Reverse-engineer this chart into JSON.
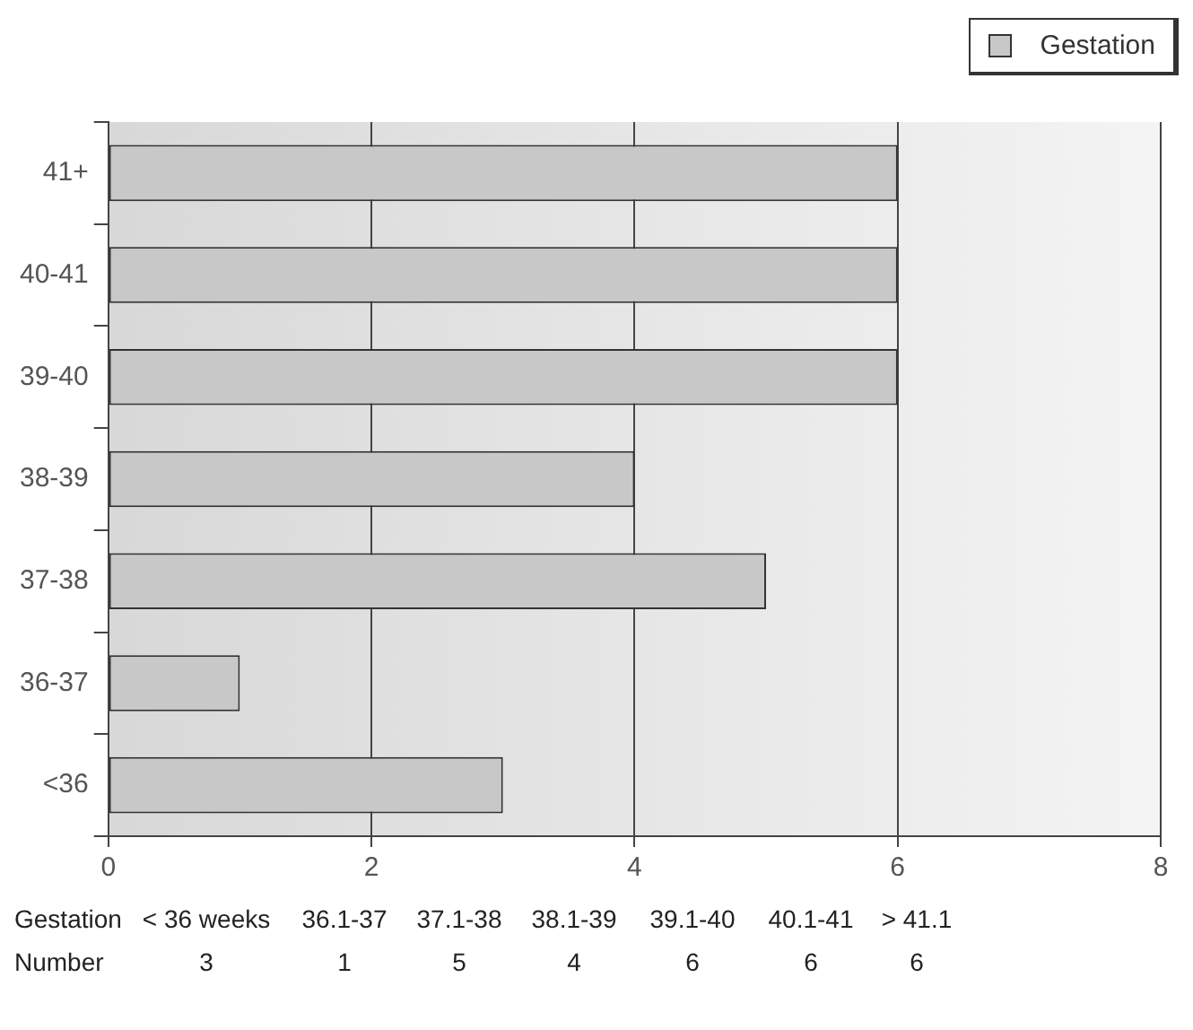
{
  "chart_data": {
    "type": "bar",
    "orientation": "horizontal",
    "categories": [
      "41+",
      "40-41",
      "39-40",
      "38-39",
      "37-38",
      "36-37",
      "<36"
    ],
    "series": [
      {
        "name": "Gestation",
        "color": "#c8c8c8",
        "values": [
          6,
          6,
          6,
          4,
          5,
          1,
          3
        ]
      }
    ],
    "xlim": [
      0,
      8
    ],
    "xticks": [
      0,
      2,
      4,
      6,
      8
    ],
    "grid": "x",
    "legend": "top right",
    "annotations": [
      "Gestation",
      "< 36 weeks",
      "36.1-37",
      "37.1-38",
      "38.1-39",
      "39.1-40",
      "40.1-41",
      "> 41.1",
      "Number",
      "3",
      "1",
      "5",
      "4",
      "6",
      "6",
      "6"
    ]
  }
}
